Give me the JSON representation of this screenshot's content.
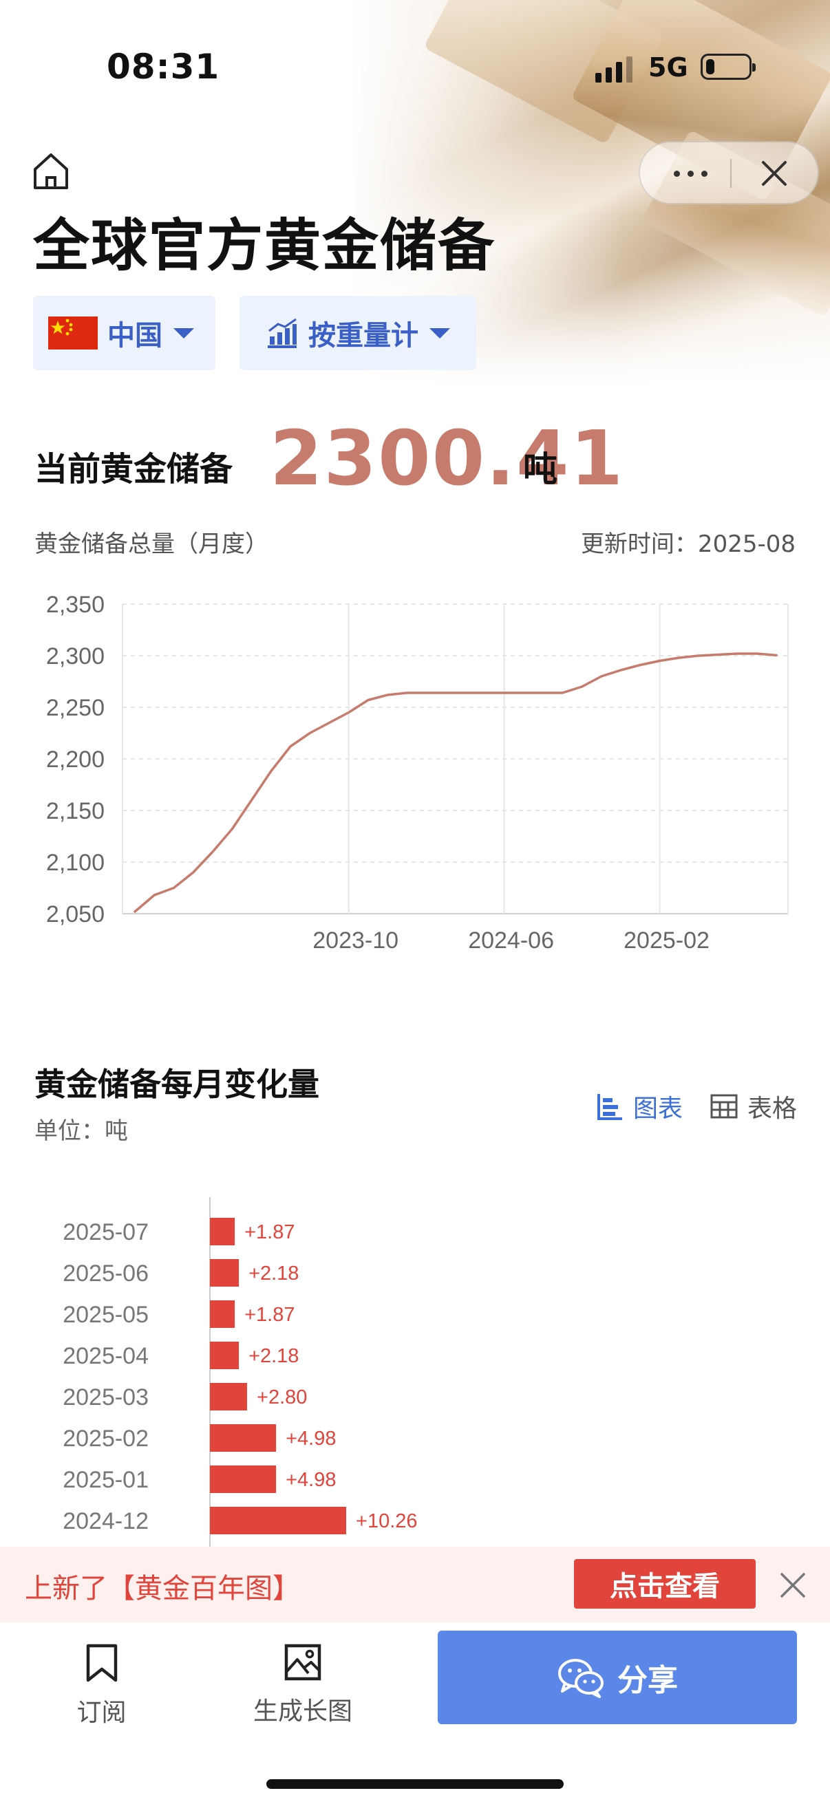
{
  "status_bar": {
    "time": "08:31",
    "network": "5G"
  },
  "header": {
    "title": "全球官方黄金储备",
    "icons": {
      "home": "home-icon",
      "more": "more-icon",
      "close": "close-icon"
    }
  },
  "filters": {
    "country": {
      "label": "中国",
      "icon": "china-flag-icon"
    },
    "metric": {
      "label": "按重量计",
      "icon": "bar-chart-icon"
    }
  },
  "current": {
    "label": "当前黄金储备",
    "value": "2300.41",
    "unit": "吨"
  },
  "line_section": {
    "subtitle": "黄金储备总量（月度）",
    "updated": "更新时间：2025-08"
  },
  "monthly_section": {
    "title": "黄金储备每月变化量",
    "unit": "单位：吨",
    "tab_chart": "图表",
    "tab_table": "表格"
  },
  "chart_data": [
    {
      "type": "line",
      "y_ticks": [
        "2,350",
        "2,300",
        "2,250",
        "2,200",
        "2,150",
        "2,100",
        "2,050"
      ],
      "x_ticks": [
        "2023-10",
        "2024-06",
        "2025-02"
      ],
      "ylim": [
        2050,
        2350
      ],
      "grid": true,
      "color": "#c77b6c",
      "x": [
        "2022-11",
        "2022-12",
        "2023-01",
        "2023-02",
        "2023-03",
        "2023-04",
        "2023-05",
        "2023-06",
        "2023-07",
        "2023-08",
        "2023-09",
        "2023-10",
        "2023-11",
        "2023-12",
        "2024-01",
        "2024-02",
        "2024-03",
        "2024-04",
        "2024-05",
        "2024-06",
        "2024-07",
        "2024-08",
        "2024-09",
        "2024-10",
        "2024-11",
        "2024-12",
        "2025-01",
        "2025-02",
        "2025-03",
        "2025-04",
        "2025-05",
        "2025-06",
        "2025-07",
        "2025-08"
      ],
      "values": [
        2052,
        2068,
        2075,
        2090,
        2110,
        2132,
        2160,
        2188,
        2212,
        2225,
        2235,
        2245,
        2257,
        2262,
        2264,
        2264,
        2264,
        2264,
        2264,
        2264,
        2264,
        2264,
        2264,
        2270,
        2280,
        2286,
        2291,
        2295,
        2298,
        2300,
        2301,
        2302,
        2302,
        2300.41
      ]
    },
    {
      "type": "bar",
      "orientation": "horizontal",
      "categories": [
        "2025-07",
        "2025-06",
        "2025-05",
        "2025-04",
        "2025-03",
        "2025-02",
        "2025-01",
        "2024-12"
      ],
      "values": [
        1.87,
        2.18,
        1.87,
        2.18,
        2.8,
        4.98,
        4.98,
        10.26
      ],
      "value_labels": [
        "+1.87",
        "+2.18",
        "+1.87",
        "+2.18",
        "+2.80",
        "+4.98",
        "+4.98",
        "+10.26"
      ],
      "color": "#e0443a"
    }
  ],
  "promo": {
    "text": "上新了【黄金百年图】",
    "button": "点击查看"
  },
  "bottom_nav": {
    "subscribe": "订阅",
    "long_image": "生成长图",
    "share": "分享"
  }
}
